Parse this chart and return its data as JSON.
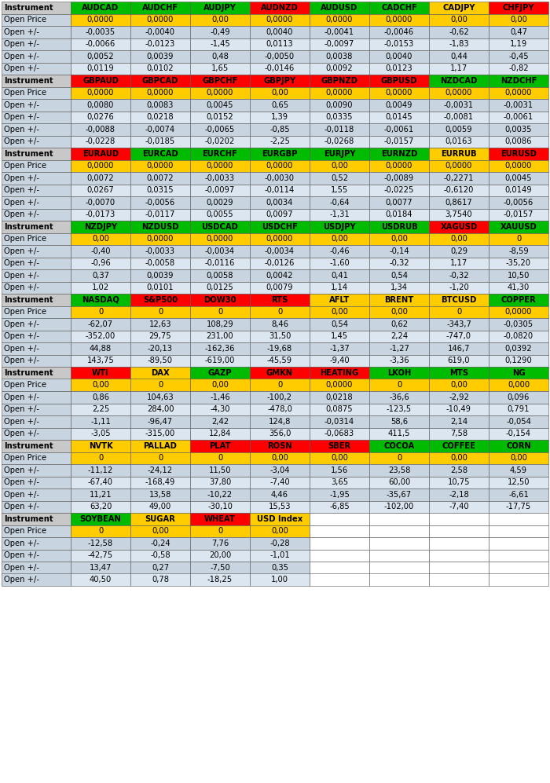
{
  "sections": [
    {
      "instruments": [
        "Instrument",
        "AUDCAD",
        "AUDCHF",
        "AUDJPY",
        "AUDNZD",
        "AUDUSD",
        "CADCHF",
        "CADJPY",
        "CHFJPY"
      ],
      "instrument_colors": [
        "#c8c8c8",
        "#00bb00",
        "#00bb00",
        "#00bb00",
        "#ff0000",
        "#00bb00",
        "#00bb00",
        "#ffcc00",
        "#ff0000"
      ],
      "rows": [
        [
          "Open Price",
          "0,0000",
          "0,0000",
          "0,00",
          "0,0000",
          "0,0000",
          "0,0000",
          "0,00",
          "0,00"
        ],
        [
          "Open +/-",
          "-0,0035",
          "-0,0040",
          "-0,49",
          "0,0040",
          "-0,0041",
          "-0,0046",
          "-0,62",
          "0,47"
        ],
        [
          "Open +/-",
          "-0,0066",
          "-0,0123",
          "-1,45",
          "0,0113",
          "-0,0097",
          "-0,0153",
          "-1,83",
          "1,19"
        ],
        [
          "Open +/-",
          "0,0052",
          "0,0039",
          "0,48",
          "-0,0050",
          "0,0038",
          "0,0040",
          "0,44",
          "-0,45"
        ],
        [
          "Open +/-",
          "0,0119",
          "0,0102",
          "1,65",
          "-0,0146",
          "0,0092",
          "0,0123",
          "1,17",
          "-0,82"
        ]
      ]
    },
    {
      "instruments": [
        "Instrument",
        "GBPAUD",
        "GBPCAD",
        "GBPCHF",
        "GBPJPY",
        "GBPNZD",
        "GBPUSD",
        "NZDCAD",
        "NZDCHF"
      ],
      "instrument_colors": [
        "#c8c8c8",
        "#ff0000",
        "#ff0000",
        "#ff0000",
        "#ff0000",
        "#ff0000",
        "#ff0000",
        "#00bb00",
        "#00bb00"
      ],
      "rows": [
        [
          "Open Price",
          "0,0000",
          "0,0000",
          "0,0000",
          "0,00",
          "0,0000",
          "0,0000",
          "0,0000",
          "0,0000"
        ],
        [
          "Open +/-",
          "0,0080",
          "0,0083",
          "0,0045",
          "0,65",
          "0,0090",
          "0,0049",
          "-0,0031",
          "-0,0031"
        ],
        [
          "Open +/-",
          "0,0276",
          "0,0218",
          "0,0152",
          "1,39",
          "0,0335",
          "0,0145",
          "-0,0081",
          "-0,0061"
        ],
        [
          "Open +/-",
          "-0,0088",
          "-0,0074",
          "-0,0065",
          "-0,85",
          "-0,0118",
          "-0,0061",
          "0,0059",
          "0,0035"
        ],
        [
          "Open +/-",
          "-0,0228",
          "-0,0185",
          "-0,0202",
          "-2,25",
          "-0,0268",
          "-0,0157",
          "0,0163",
          "0,0086"
        ]
      ]
    },
    {
      "instruments": [
        "Instrument",
        "EURAUD",
        "EURCAD",
        "EURCHF",
        "EURGBP",
        "EURJPY",
        "EURNZD",
        "EURRUB",
        "EURUSD"
      ],
      "instrument_colors": [
        "#c8c8c8",
        "#ff0000",
        "#00bb00",
        "#00bb00",
        "#00bb00",
        "#00bb00",
        "#00bb00",
        "#ffcc00",
        "#ff0000"
      ],
      "rows": [
        [
          "Open Price",
          "0,0000",
          "0,0000",
          "0,0000",
          "0,0000",
          "0,00",
          "0,0000",
          "0,0000",
          "0,0000"
        ],
        [
          "Open +/-",
          "0,0072",
          "0,0072",
          "-0,0033",
          "-0,0030",
          "0,52",
          "-0,0089",
          "-0,2271",
          "0,0045"
        ],
        [
          "Open +/-",
          "0,0267",
          "0,0315",
          "-0,0097",
          "-0,0114",
          "1,55",
          "-0,0225",
          "-0,6120",
          "0,0149"
        ],
        [
          "Open +/-",
          "-0,0070",
          "-0,0056",
          "0,0029",
          "0,0034",
          "-0,64",
          "0,0077",
          "0,8617",
          "-0,0056"
        ],
        [
          "Open +/-",
          "-0,0173",
          "-0,0117",
          "0,0055",
          "0,0097",
          "-1,31",
          "0,0184",
          "3,7540",
          "-0,0157"
        ]
      ]
    },
    {
      "instruments": [
        "Instrument",
        "NZDJPY",
        "NZDUSD",
        "USDCAD",
        "USDCHF",
        "USDJPY",
        "USDRUB",
        "XAGUSD",
        "XAUUSD"
      ],
      "instrument_colors": [
        "#c8c8c8",
        "#00bb00",
        "#00bb00",
        "#00bb00",
        "#00bb00",
        "#00bb00",
        "#00bb00",
        "#ff0000",
        "#00bb00"
      ],
      "rows": [
        [
          "Open Price",
          "0,00",
          "0,0000",
          "0,0000",
          "0,0000",
          "0,00",
          "0,00",
          "0,00",
          "0"
        ],
        [
          "Open +/-",
          "-0,40",
          "-0,0033",
          "-0,0034",
          "-0,0034",
          "-0,46",
          "-0,14",
          "0,29",
          "-8,59"
        ],
        [
          "Open +/-",
          "-0,96",
          "-0,0058",
          "-0,0116",
          "-0,0126",
          "-1,60",
          "-0,32",
          "1,17",
          "-35,20"
        ],
        [
          "Open +/-",
          "0,37",
          "0,0039",
          "0,0058",
          "0,0042",
          "0,41",
          "0,54",
          "-0,32",
          "10,50"
        ],
        [
          "Open +/-",
          "1,02",
          "0,0101",
          "0,0125",
          "0,0079",
          "1,14",
          "1,34",
          "-1,20",
          "41,30"
        ]
      ]
    },
    {
      "instruments": [
        "Instrument",
        "NASDAQ",
        "S&P500",
        "DOW30",
        "RTS",
        "AFLT",
        "BRENT",
        "BTCUSD",
        "COPPER"
      ],
      "instrument_colors": [
        "#c8c8c8",
        "#00bb00",
        "#ff0000",
        "#ff0000",
        "#ff0000",
        "#ffcc00",
        "#ffcc00",
        "#ffcc00",
        "#00bb00"
      ],
      "rows": [
        [
          "Open Price",
          "0",
          "0",
          "0",
          "0",
          "0,00",
          "0,00",
          "0",
          "0,0000"
        ],
        [
          "Open +/-",
          "-62,07",
          "12,63",
          "108,29",
          "8,46",
          "0,54",
          "0,62",
          "-343,7",
          "-0,0305"
        ],
        [
          "Open +/-",
          "-352,00",
          "29,75",
          "231,00",
          "31,50",
          "1,45",
          "2,24",
          "-747,0",
          "-0,0820"
        ],
        [
          "Open +/-",
          "44,88",
          "-20,13",
          "-162,36",
          "-19,68",
          "-1,37",
          "-1,27",
          "146,7",
          "0,0392"
        ],
        [
          "Open +/-",
          "143,75",
          "-89,50",
          "-619,00",
          "-45,59",
          "-9,40",
          "-3,36",
          "619,0",
          "0,1290"
        ]
      ]
    },
    {
      "instruments": [
        "Instrument",
        "WTI",
        "DAX",
        "GAZP",
        "GMKN",
        "HEATING",
        "LKOH",
        "MTS",
        "NG"
      ],
      "instrument_colors": [
        "#c8c8c8",
        "#ff0000",
        "#ffcc00",
        "#00bb00",
        "#ff0000",
        "#ff0000",
        "#00bb00",
        "#00bb00",
        "#00bb00"
      ],
      "rows": [
        [
          "Open Price",
          "0,00",
          "0",
          "0,00",
          "0",
          "0,0000",
          "0",
          "0,00",
          "0,000"
        ],
        [
          "Open +/-",
          "0,86",
          "104,63",
          "-1,46",
          "-100,2",
          "0,0218",
          "-36,6",
          "-2,92",
          "0,096"
        ],
        [
          "Open +/-",
          "2,25",
          "284,00",
          "-4,30",
          "-478,0",
          "0,0875",
          "-123,5",
          "-10,49",
          "0,791"
        ],
        [
          "Open +/-",
          "-1,11",
          "-96,47",
          "2,42",
          "124,8",
          "-0,0314",
          "58,6",
          "2,14",
          "-0,054"
        ],
        [
          "Open +/-",
          "-3,05",
          "-315,00",
          "12,84",
          "356,0",
          "-0,0683",
          "411,5",
          "7,58",
          "-0,154"
        ]
      ]
    },
    {
      "instruments": [
        "Instrument",
        "NVTK",
        "PALLAD",
        "PLAT",
        "ROSN",
        "SBER",
        "COCOA",
        "COFFEE",
        "CORN"
      ],
      "instrument_colors": [
        "#c8c8c8",
        "#ffcc00",
        "#ffcc00",
        "#ff0000",
        "#ff0000",
        "#ff0000",
        "#00bb00",
        "#00bb00",
        "#00bb00"
      ],
      "rows": [
        [
          "Open Price",
          "0",
          "0",
          "0",
          "0,00",
          "0,00",
          "0",
          "0,00",
          "0,00"
        ],
        [
          "Open +/-",
          "-11,12",
          "-24,12",
          "11,50",
          "-3,04",
          "1,56",
          "23,58",
          "2,58",
          "4,59"
        ],
        [
          "Open +/-",
          "-67,40",
          "-168,49",
          "37,80",
          "-7,40",
          "3,65",
          "60,00",
          "10,75",
          "12,50"
        ],
        [
          "Open +/-",
          "11,21",
          "13,58",
          "-10,22",
          "4,46",
          "-1,95",
          "-35,67",
          "-2,18",
          "-6,61"
        ],
        [
          "Open +/-",
          "63,20",
          "49,00",
          "-30,10",
          "15,53",
          "-6,85",
          "-102,00",
          "-7,40",
          "-17,75"
        ]
      ]
    },
    {
      "instruments": [
        "Instrument",
        "SOYBEAN",
        "SUGAR",
        "WHEAT",
        "USD Index",
        "",
        "",
        "",
        ""
      ],
      "instrument_colors": [
        "#c8c8c8",
        "#00bb00",
        "#ffcc00",
        "#ff0000",
        "#ffcc00",
        "#ffffff",
        "#ffffff",
        "#ffffff",
        "#ffffff"
      ],
      "rows": [
        [
          "Open Price",
          "0",
          "0,00",
          "0",
          "0,00",
          "",
          "",
          "",
          ""
        ],
        [
          "Open +/-",
          "-12,58",
          "-0,24",
          "7,76",
          "-0,28",
          "",
          "",
          "",
          ""
        ],
        [
          "Open +/-",
          "-42,75",
          "-0,58",
          "20,00",
          "-1,01",
          "",
          "",
          "",
          ""
        ],
        [
          "Open +/-",
          "13,47",
          "0,27",
          "-7,50",
          "0,35",
          "",
          "",
          "",
          ""
        ],
        [
          "Open +/-",
          "40,50",
          "0,78",
          "-18,25",
          "1,00",
          "",
          "",
          "",
          ""
        ]
      ]
    }
  ],
  "n_cols": 9,
  "bg_open_price": "#ffcc00",
  "bg_row1": "#c8d4e0",
  "bg_row2": "#dce6f0",
  "bg_label": "#c8d4e0",
  "bg_white": "#ffffff"
}
